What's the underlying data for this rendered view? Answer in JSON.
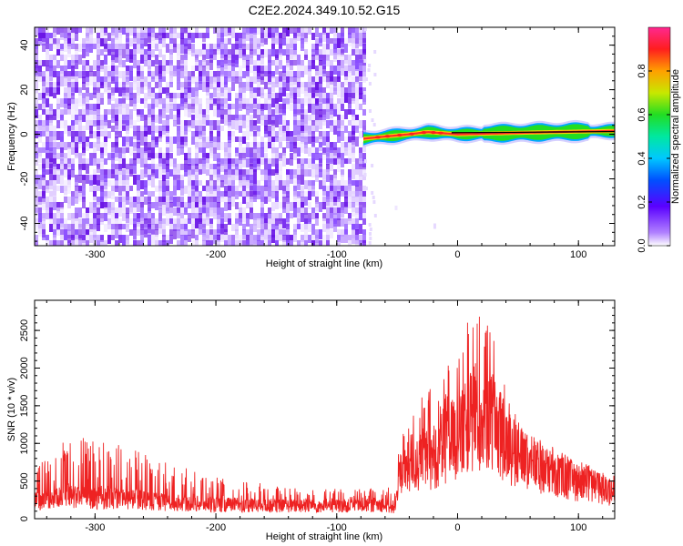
{
  "title": "C2E2.2024.349.10.52.G15",
  "colors": {
    "snr_line": "#ee2222",
    "noise_purple": "#6a14e6",
    "trace_core": "#ff2a2a",
    "trace_mid": "#22dd22",
    "trace_outer": "#00a8ff"
  },
  "chart_data": [
    {
      "type": "heatmap",
      "xlabel": "Height of straight line (km)",
      "ylabel": "Frequency (Hz)",
      "xlim": [
        -350,
        130
      ],
      "ylim": [
        -50,
        48
      ],
      "xticks": [
        -300,
        -200,
        -100,
        0,
        100
      ],
      "yticks": [
        -40,
        -20,
        0,
        20,
        40
      ],
      "colorbar": {
        "label": "Normalized spectral amplitude",
        "range": [
          0,
          1
        ],
        "ticks": [
          "0.0",
          "0.2",
          "0.4",
          "0.6",
          "0.8"
        ]
      },
      "noise_region": {
        "x": [
          -350,
          -78
        ],
        "y": [
          -50,
          48
        ],
        "level": [
          0.05,
          0.2
        ]
      },
      "trace": {
        "description_points": [
          {
            "x": -78,
            "y": -2,
            "level": 0.5
          },
          {
            "x": -60,
            "y": -1,
            "level": 0.85
          },
          {
            "x": -40,
            "y": 0,
            "level": 0.8
          },
          {
            "x": -25,
            "y": 1,
            "level": 0.9
          },
          {
            "x": 0,
            "y": 0,
            "level": 0.98
          },
          {
            "x": 40,
            "y": 0.5,
            "level": 0.95
          },
          {
            "x": 80,
            "y": 1,
            "level": 0.75
          },
          {
            "x": 130,
            "y": 1.5,
            "level": 0.6
          }
        ]
      }
    },
    {
      "type": "line",
      "xlabel": "Height of straight line (km)",
      "ylabel": "SNR (10 * v/v)",
      "xlim": [
        -350,
        130
      ],
      "ylim": [
        0,
        2900
      ],
      "xticks": [
        -300,
        -200,
        -100,
        0,
        100
      ],
      "yticks": [
        0,
        500,
        1000,
        1500,
        2000,
        2500
      ],
      "series": [
        {
          "envelope": [
            {
              "x": -350,
              "base": 300,
              "peak": 600
            },
            {
              "x": -335,
              "base": 350,
              "peak": 1000
            },
            {
              "x": -310,
              "base": 400,
              "peak": 1100
            },
            {
              "x": -300,
              "base": 350,
              "peak": 1050
            },
            {
              "x": -270,
              "base": 350,
              "peak": 950
            },
            {
              "x": -250,
              "base": 300,
              "peak": 800
            },
            {
              "x": -200,
              "base": 250,
              "peak": 550
            },
            {
              "x": -150,
              "base": 230,
              "peak": 450
            },
            {
              "x": -100,
              "base": 220,
              "peak": 400
            },
            {
              "x": -60,
              "base": 250,
              "peak": 450
            },
            {
              "x": -52,
              "base": 150,
              "peak": 350
            },
            {
              "x": -48,
              "base": 800,
              "peak": 1050
            },
            {
              "x": -40,
              "base": 900,
              "peak": 1400
            },
            {
              "x": -20,
              "base": 1100,
              "peak": 1800
            },
            {
              "x": 0,
              "base": 1400,
              "peak": 2400
            },
            {
              "x": 15,
              "base": 1800,
              "peak": 2850
            },
            {
              "x": 30,
              "base": 1700,
              "peak": 2500
            },
            {
              "x": 40,
              "base": 1300,
              "peak": 1700
            },
            {
              "x": 60,
              "base": 950,
              "peak": 1150
            },
            {
              "x": 90,
              "base": 700,
              "peak": 850
            },
            {
              "x": 110,
              "base": 580,
              "peak": 700
            },
            {
              "x": 130,
              "base": 450,
              "peak": 600
            }
          ]
        }
      ]
    }
  ]
}
